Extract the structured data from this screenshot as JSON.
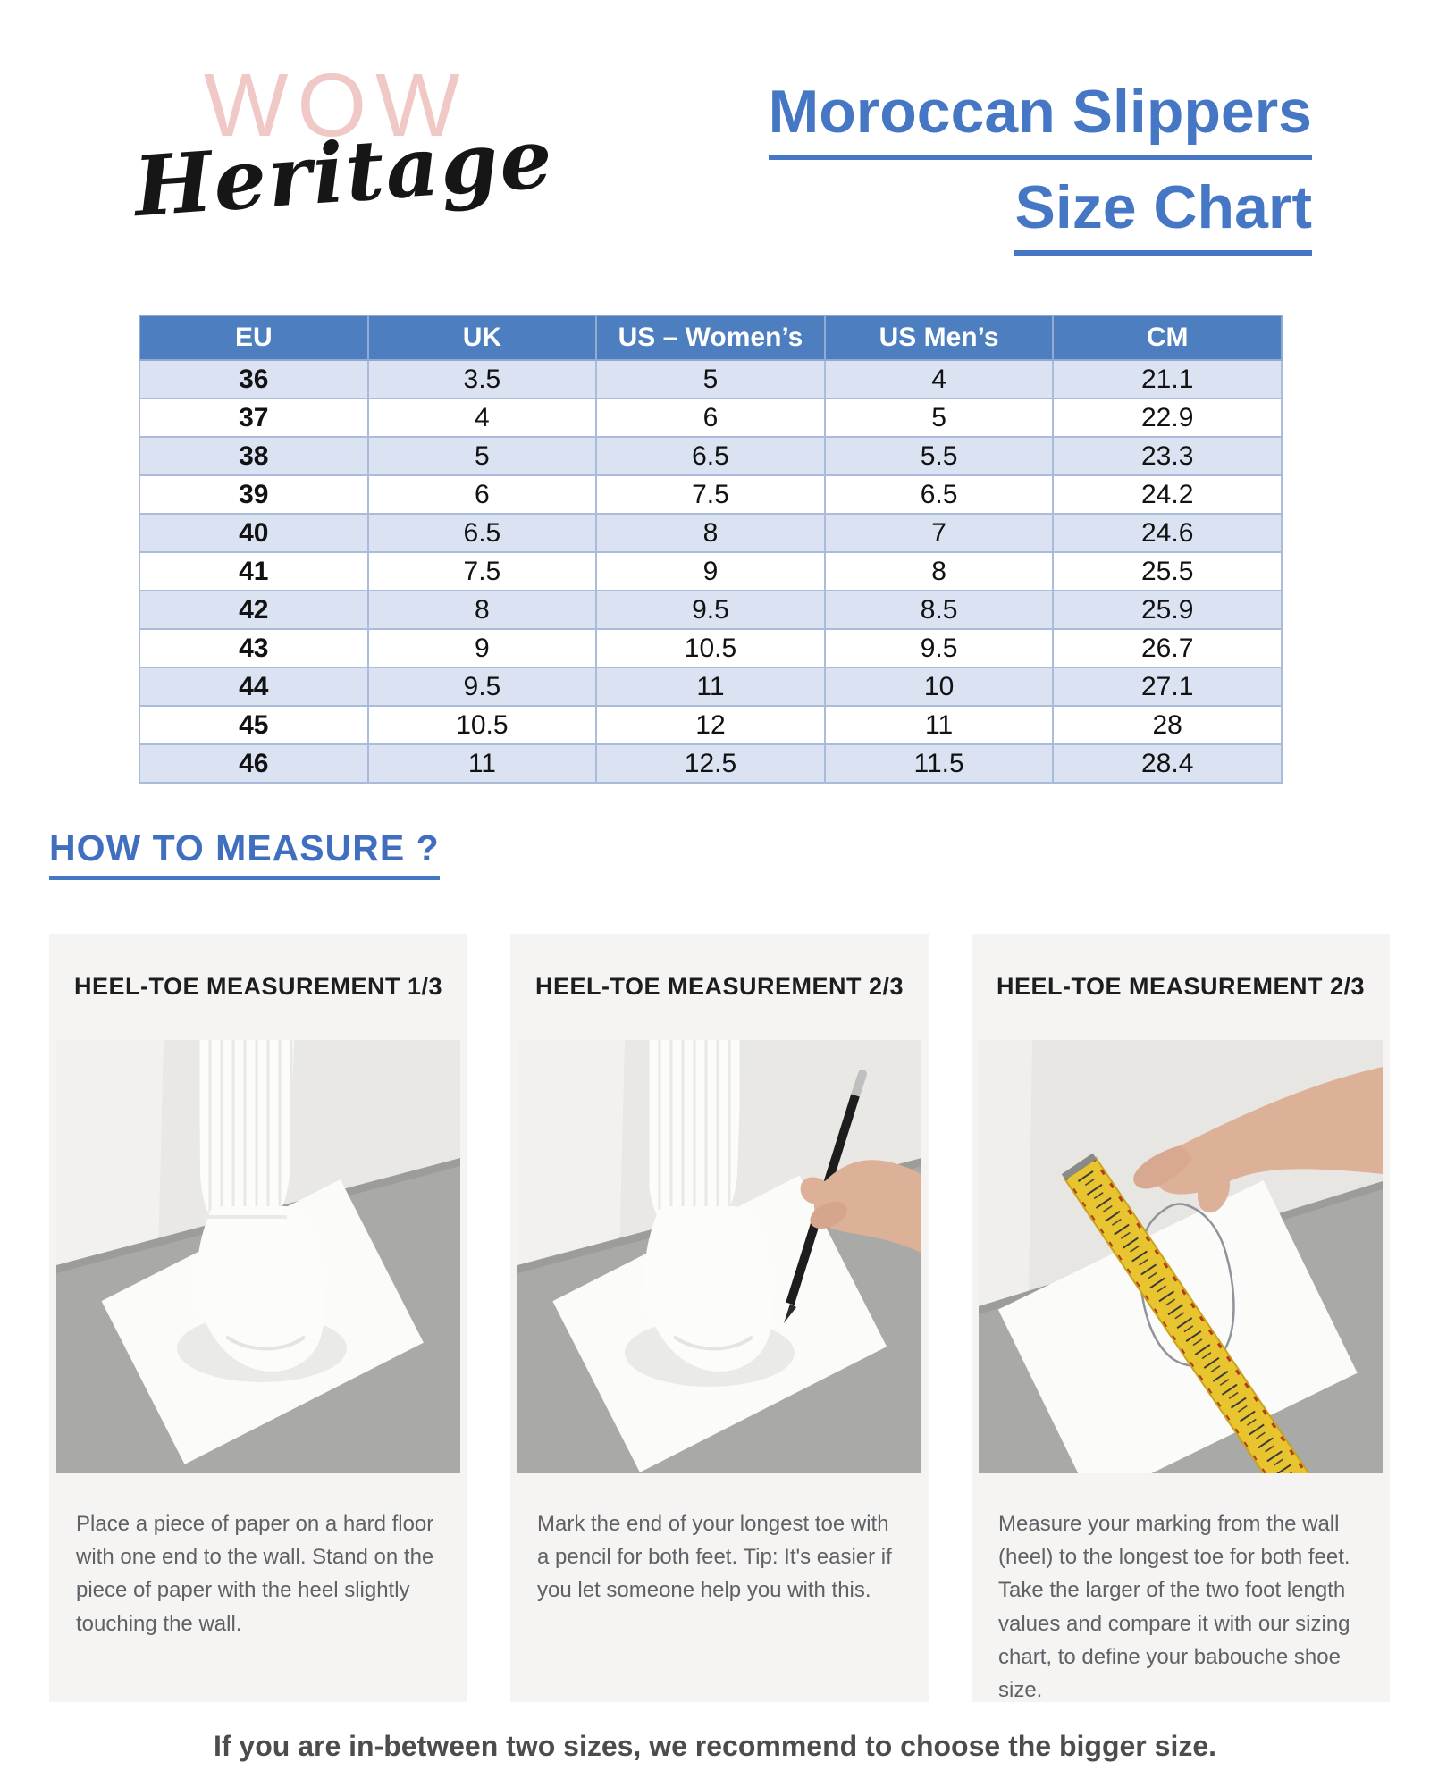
{
  "logo": {
    "wow": "WOW",
    "heritage": "Heritage"
  },
  "title": {
    "line1": "Moroccan Slippers",
    "line2": "Size Chart"
  },
  "size_table": {
    "headers": [
      "EU",
      "UK",
      "US – Women’s",
      "US Men’s",
      "CM"
    ],
    "rows": [
      [
        "36",
        "3.5",
        "5",
        "4",
        "21.1"
      ],
      [
        "37",
        "4",
        "6",
        "5",
        "22.9"
      ],
      [
        "38",
        "5",
        "6.5",
        "5.5",
        "23.3"
      ],
      [
        "39",
        "6",
        "7.5",
        "6.5",
        "24.2"
      ],
      [
        "40",
        "6.5",
        "8",
        "7",
        "24.6"
      ],
      [
        "41",
        "7.5",
        "9",
        "8",
        "25.5"
      ],
      [
        "42",
        "8",
        "9.5",
        "8.5",
        "25.9"
      ],
      [
        "43",
        "9",
        "10.5",
        "9.5",
        "26.7"
      ],
      [
        "44",
        "9.5",
        "11",
        "10",
        "27.1"
      ],
      [
        "45",
        "10.5",
        "12",
        "11",
        "28"
      ],
      [
        "46",
        "11",
        "12.5",
        "11.5",
        "28.4"
      ]
    ]
  },
  "how_to_measure": {
    "heading": "HOW TO MEASURE ?",
    "steps": [
      {
        "title": "HEEL-TOE MEASUREMENT 1/3",
        "caption": "Place a piece of paper on a hard floor with one end to the wall. Stand on the piece of paper with the heel slightly touching the wall."
      },
      {
        "title": "HEEL-TOE MEASUREMENT 2/3",
        "caption": "Mark the end of your longest toe with a pencil for both feet. Tip: It's easier if you let someone help you with this."
      },
      {
        "title": "HEEL-TOE MEASUREMENT 2/3",
        "caption": "Measure your marking from the wall (heel) to the longest toe for both feet. Take the larger of the two foot length values and compare it with our sizing chart, to define your babouche shoe size."
      }
    ]
  },
  "footer": {
    "note": "If you are in-between two sizes, we recommend to choose the bigger size."
  },
  "colors": {
    "accent_blue": "#4577c4",
    "table_header_bg": "#4d7ec0",
    "table_alt_row_bg": "#dbe3f2",
    "logo_pink": "#f0c8c5",
    "card_bg": "#f5f4f3",
    "tape_yellow": "#e8c52e"
  }
}
